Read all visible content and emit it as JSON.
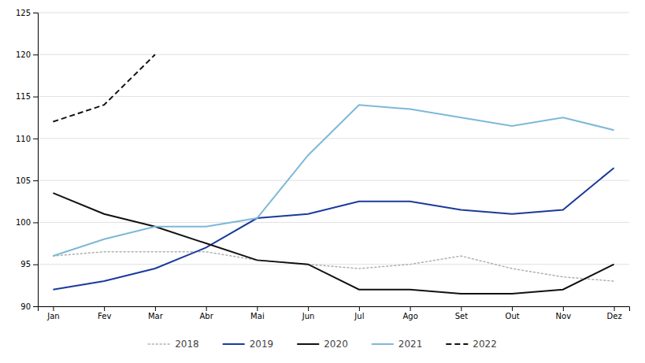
{
  "chart_data": {
    "type": "line",
    "categories": [
      "Jan",
      "Fev",
      "Mar",
      "Abr",
      "Mai",
      "Jun",
      "Jul",
      "Ago",
      "Set",
      "Out",
      "Nov",
      "Dez"
    ],
    "series": [
      {
        "name": "2018",
        "color": "#b0b0b0",
        "line_style": "dotted",
        "values": [
          96,
          96.5,
          96.5,
          96.5,
          95.5,
          95,
          94.5,
          95,
          96,
          94.5,
          93.5,
          93
        ]
      },
      {
        "name": "2019",
        "color": "#1a3a9c",
        "line_style": "solid",
        "values": [
          92,
          93,
          94.5,
          97,
          100.5,
          101,
          102.5,
          102.5,
          101.5,
          101,
          101.5,
          106.5
        ]
      },
      {
        "name": "2020",
        "color": "#111111",
        "line_style": "solid",
        "values": [
          103.5,
          101,
          99.5,
          97.5,
          95.5,
          95,
          92,
          92,
          91.5,
          91.5,
          92,
          95
        ]
      },
      {
        "name": "2021",
        "color": "#7db8d8",
        "line_style": "solid",
        "values": [
          96,
          98,
          99.5,
          99.5,
          100.5,
          108,
          114,
          113.5,
          112.5,
          111.5,
          112.5,
          111
        ]
      },
      {
        "name": "2022",
        "color": "#111111",
        "line_style": "dashed",
        "values": [
          112,
          114,
          120,
          null,
          null,
          null,
          null,
          null,
          null,
          null,
          null,
          null
        ]
      }
    ],
    "ylim": [
      90,
      125
    ],
    "yticks": [
      90,
      95,
      100,
      105,
      110,
      115,
      120,
      125
    ],
    "grid": true,
    "legend": "bottom"
  }
}
